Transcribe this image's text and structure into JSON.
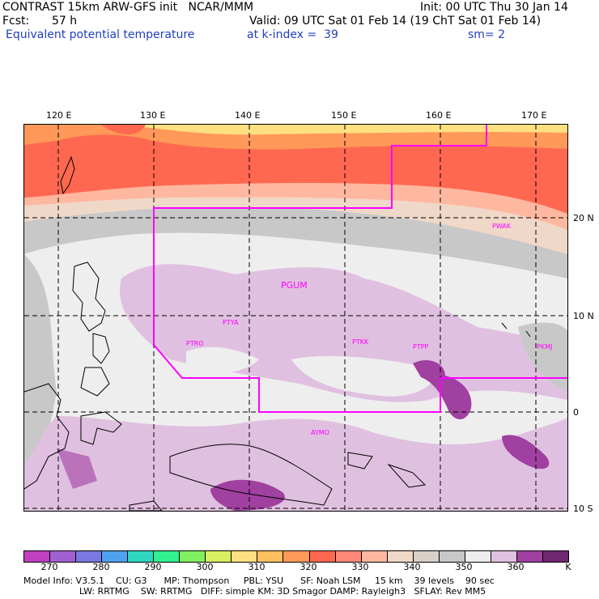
{
  "header": {
    "line1_left": "CONTRAST 15km ARW-GFS init   NCAR/MMM",
    "line1_right": "Init: 00 UTC Thu 30 Jan 14",
    "fcst_label": "Fcst:",
    "fcst_value": "57 h",
    "valid": "Valid: 09 UTC Sat 01 Feb 14 (19 ChT Sat 01 Feb 14)",
    "field_name": "Equivalent potential temperature",
    "level": "at k-index =  39",
    "smooth": "sm= 2"
  },
  "map": {
    "lon_labels": [
      "120 E",
      "130 E",
      "140 E",
      "150 E",
      "160 E",
      "170 E"
    ],
    "lat_labels": [
      "20 N",
      "10 N",
      "0",
      "10 S"
    ],
    "stations": [
      "PGUM",
      "PTYA",
      "PTRO",
      "PTKK",
      "PTPP",
      "PKMJ",
      "PWAK",
      "AYMO"
    ]
  },
  "colorbar": {
    "colors": [
      "#c040c0",
      "#a060d0",
      "#7878e0",
      "#50a0f0",
      "#30d8c0",
      "#30f090",
      "#80f060",
      "#d8f060",
      "#ffe080",
      "#ffc060",
      "#ff9858",
      "#ff6850",
      "#ff8878",
      "#ffb8a0",
      "#f0d8c8",
      "#d8d0c8",
      "#c8c8c8",
      "#eeeeee",
      "#e0c0e0",
      "#a040a0",
      "#702870"
    ],
    "tick_labels": [
      "270",
      "280",
      "290",
      "300",
      "310",
      "320",
      "330",
      "340",
      "350",
      "360",
      "K"
    ]
  },
  "footer": {
    "line1": "Model Info: V3.5.1    CU: G3      MP: Thompson     PBL: YSU      SF: Noah LSM     15 km    39 levels    90 sec",
    "line2": "LW: RRTMG    SW: RRTMG   DIFF: simple KM: 3D Smagor DAMP: Rayleigh3   SFLAY: Rev MM5"
  }
}
